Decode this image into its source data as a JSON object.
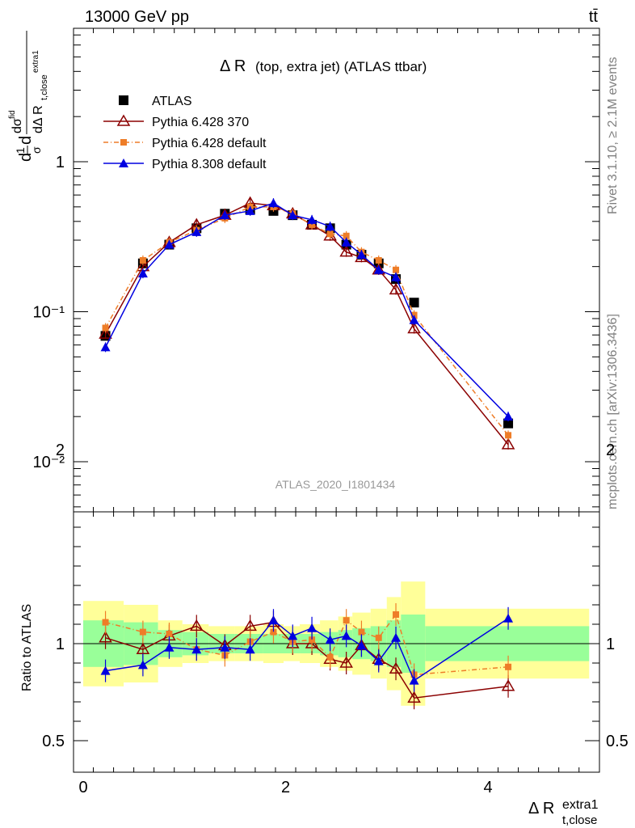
{
  "header": {
    "energy": "13000 GeV pp",
    "process": "tt̄"
  },
  "side_labels": {
    "rivet": "Rivet 3.1.10, ≥ 2.1M events",
    "mcplots": "mcplots.cern.ch [arXiv:1306.3436]"
  },
  "chart_data": {
    "type": "line",
    "title_main": "Δ R",
    "title_sub": "(top, extra jet) (ATLAS ttbar)",
    "analysis_label": "ATLAS_2020_I1801434",
    "xlabel": "Δ R",
    "xlabel_sub": "t,close",
    "xlabel_sup": "extra1",
    "ylabel_upper": "dσ/d Δ R (normalized)",
    "ylabel_lower": "Ratio to ATLAS",
    "upper_yscale": "log",
    "upper_ylim": [
      0.005,
      5.0
    ],
    "lower_ylim": [
      0.4,
      2.4
    ],
    "xlim": [
      -0.1,
      5.1
    ],
    "x_ticks": [
      "0",
      "2",
      "4"
    ],
    "upper_y_ticks": [
      "1",
      "10⁻¹",
      "10⁻²"
    ],
    "lower_y_ticks": [
      "2",
      "1",
      "0.5"
    ],
    "bin_edges": [
      0.0,
      0.4,
      0.74,
      0.98,
      1.24,
      1.5,
      1.78,
      1.98,
      2.14,
      2.34,
      2.52,
      2.66,
      2.84,
      3.0,
      3.14,
      3.38,
      5.0
    ],
    "x": [
      0.22,
      0.59,
      0.85,
      1.12,
      1.4,
      1.65,
      1.88,
      2.07,
      2.26,
      2.44,
      2.6,
      2.75,
      2.92,
      3.09,
      3.27,
      4.2
    ],
    "series": [
      {
        "name": "ATLAS",
        "color": "#000000",
        "marker": "square",
        "values": [
          0.069,
          0.21,
          0.28,
          0.36,
          0.45,
          0.48,
          0.47,
          0.44,
          0.38,
          0.36,
          0.28,
          0.24,
          0.21,
          0.165,
          0.115,
          0.018
        ],
        "ratio": [
          1.0,
          1.0,
          1.0,
          1.0,
          1.0,
          1.0,
          1.0,
          1.0,
          1.0,
          1.0,
          1.0,
          1.0,
          1.0,
          1.0,
          1.0,
          1.0
        ]
      },
      {
        "name": "Pythia 6.428 370",
        "color": "#8b0000",
        "marker": "open-triangle",
        "values": [
          0.071,
          0.2,
          0.29,
          0.38,
          0.44,
          0.53,
          0.51,
          0.45,
          0.38,
          0.32,
          0.25,
          0.23,
          0.19,
          0.14,
          0.077,
          0.013
        ],
        "ratio": [
          1.03,
          0.97,
          1.04,
          1.09,
          0.99,
          1.09,
          1.11,
          1.0,
          1.0,
          0.92,
          0.9,
          0.99,
          0.92,
          0.87,
          0.72,
          0.78
        ]
      },
      {
        "name": "Pythia 6.428 default",
        "color": "#ee7d28",
        "marker": "filled-square-small",
        "values": [
          0.078,
          0.22,
          0.29,
          0.35,
          0.42,
          0.5,
          0.5,
          0.45,
          0.38,
          0.33,
          0.32,
          0.25,
          0.22,
          0.19,
          0.095,
          0.015
        ],
        "ratio": [
          1.11,
          1.06,
          1.05,
          0.97,
          0.94,
          1.01,
          1.06,
          1.01,
          1.02,
          0.93,
          1.12,
          1.06,
          1.03,
          1.15,
          0.84,
          0.88
        ]
      },
      {
        "name": "Pythia 8.308 default",
        "color": "#0000e0",
        "marker": "filled-triangle",
        "values": [
          0.058,
          0.18,
          0.28,
          0.34,
          0.44,
          0.47,
          0.53,
          0.44,
          0.41,
          0.37,
          0.29,
          0.24,
          0.19,
          0.17,
          0.088,
          0.02
        ],
        "ratio": [
          0.86,
          0.89,
          0.98,
          0.97,
          0.98,
          0.97,
          1.12,
          1.04,
          1.08,
          1.02,
          1.04,
          0.99,
          0.91,
          1.03,
          0.81,
          1.13
        ]
      }
    ],
    "band_green_halfwidth": [
      0.12,
      0.11,
      0.07,
      0.06,
      0.05,
      0.05,
      0.05,
      0.05,
      0.05,
      0.06,
      0.07,
      0.08,
      0.09,
      0.12,
      0.15,
      0.09
    ],
    "band_yellow_halfwidth": [
      0.22,
      0.2,
      0.12,
      0.1,
      0.09,
      0.09,
      0.1,
      0.09,
      0.1,
      0.12,
      0.14,
      0.16,
      0.18,
      0.24,
      0.32,
      0.18
    ]
  }
}
